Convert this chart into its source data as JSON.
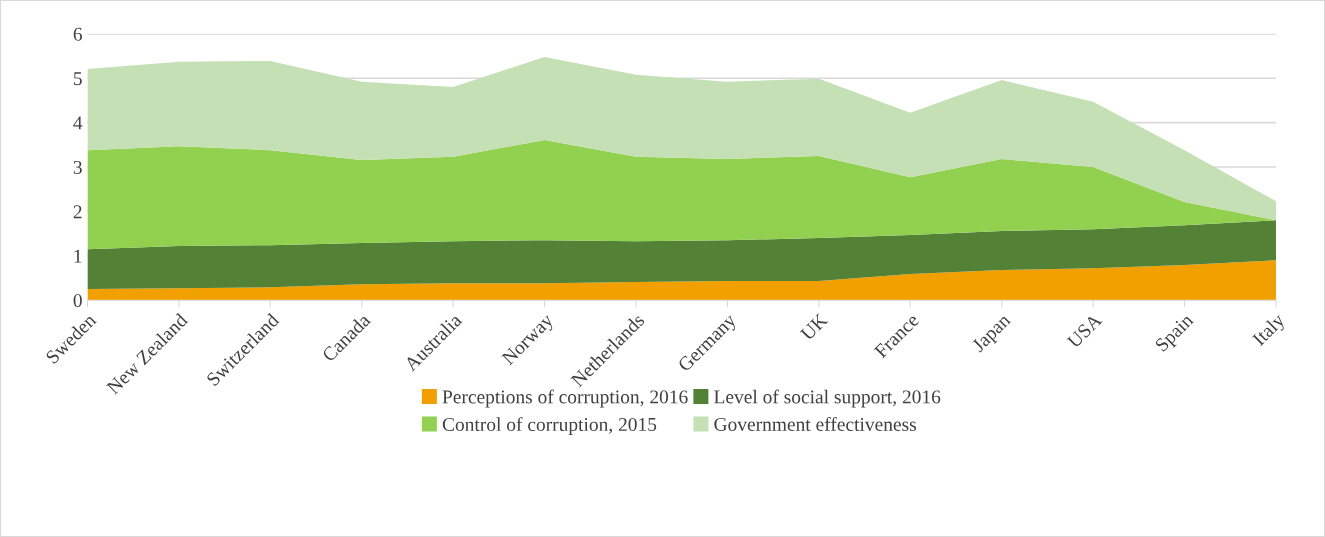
{
  "chart_data": {
    "type": "area",
    "stacked": true,
    "categories": [
      "Sweden",
      "New Zealand",
      "Switzerland",
      "Canada",
      "Australia",
      "Norway",
      "Netherlands",
      "Germany",
      "UK",
      "France",
      "Japan",
      "USA",
      "Spain",
      "Italy"
    ],
    "series": [
      {
        "name": "Perceptions of corruption, 2016",
        "color": "#f2a000",
        "values": [
          0.25,
          0.27,
          0.29,
          0.36,
          0.38,
          0.38,
          0.41,
          0.43,
          0.43,
          0.59,
          0.68,
          0.72,
          0.79,
          0.9
        ]
      },
      {
        "name": "Level of social support, 2016",
        "color": "#538135",
        "values": [
          0.9,
          0.95,
          0.95,
          0.93,
          0.95,
          0.97,
          0.92,
          0.92,
          0.97,
          0.88,
          0.88,
          0.88,
          0.9,
          0.9
        ]
      },
      {
        "name": "Control of corruption, 2015",
        "color": "#92d050",
        "values": [
          2.23,
          2.25,
          2.14,
          1.87,
          1.9,
          2.26,
          1.9,
          1.83,
          1.85,
          1.3,
          1.62,
          1.4,
          0.52,
          0.0
        ]
      },
      {
        "name": "Government effectiveness",
        "color": "#c5e0b4",
        "values": [
          1.83,
          1.9,
          2.01,
          1.76,
          1.57,
          1.87,
          1.85,
          1.74,
          1.74,
          1.45,
          1.78,
          1.47,
          1.17,
          0.43
        ]
      }
    ],
    "ylim": [
      0,
      6
    ],
    "yticks": [
      0,
      1,
      2,
      3,
      4,
      5,
      6
    ],
    "grid": "y",
    "legend": "bottom"
  }
}
